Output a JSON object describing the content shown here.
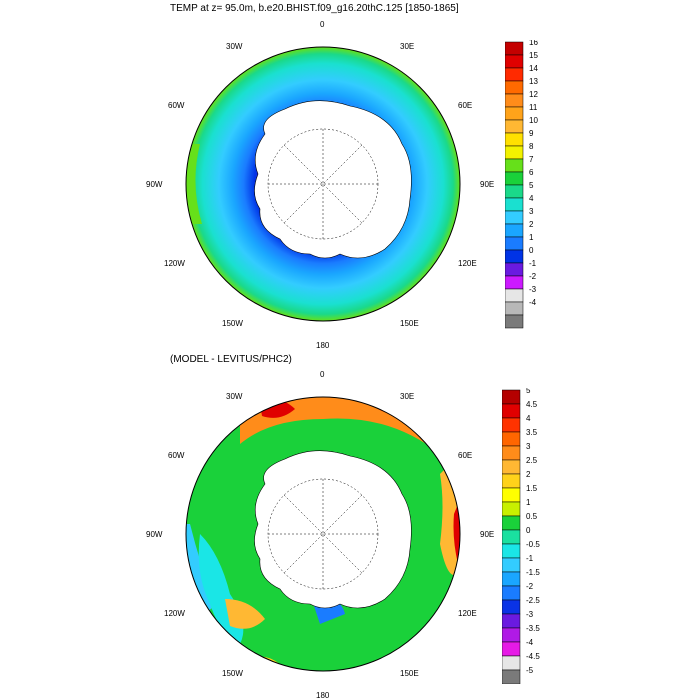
{
  "panel1": {
    "title": "TEMP at z=  95.0m, b.e20.BHIST.f09_g16.20thC.125 [1850-1865]",
    "colorbar": {
      "labels": [
        "16",
        "15",
        "14",
        "13",
        "12",
        "11",
        "10",
        "9",
        "8",
        "7",
        "6",
        "5",
        "4",
        "3",
        "2",
        "1",
        "0",
        "-1",
        "-2",
        "-3",
        "-4"
      ],
      "colors": [
        "#c40000",
        "#e00000",
        "#ff2a00",
        "#ff6a00",
        "#ff8c1a",
        "#ffa31a",
        "#ffb833",
        "#ffe000",
        "#f2f200",
        "#66e01a",
        "#1ad13a",
        "#1ad98a",
        "#1ae0d0",
        "#33ccff",
        "#1aa6ff",
        "#1a7cff",
        "#0033e6",
        "#6a1ae0",
        "#cc1aff",
        "#e6e6e6",
        "#b8b8b8",
        "#7a7a7a"
      ]
    }
  },
  "panel2": {
    "title": "(MODEL - LEVITUS/PHC2)",
    "colorbar": {
      "labels": [
        "5",
        "4.5",
        "4",
        "3.5",
        "3",
        "2.5",
        "2",
        "1.5",
        "1",
        "0.5",
        "0",
        "-0.5",
        "-1",
        "-1.5",
        "-2",
        "-2.5",
        "-3",
        "-3.5",
        "-4",
        "-4.5",
        "-5"
      ],
      "colors": [
        "#b40000",
        "#e00000",
        "#ff3300",
        "#ff6600",
        "#ff8c1a",
        "#ffb833",
        "#ffd21a",
        "#ffff00",
        "#c8f000",
        "#1ad13a",
        "#1ae0a0",
        "#1ae6e6",
        "#33ccff",
        "#1aa6ff",
        "#1a7cff",
        "#0a33e6",
        "#6a1ae0",
        "#b01ae6",
        "#e61ae6",
        "#e6e6e6",
        "#7a7a7a"
      ]
    }
  },
  "longitude_labels": [
    "0",
    "30E",
    "60E",
    "90E",
    "120E",
    "150E",
    "180",
    "150W",
    "120W",
    "90W",
    "60W",
    "30W"
  ]
}
